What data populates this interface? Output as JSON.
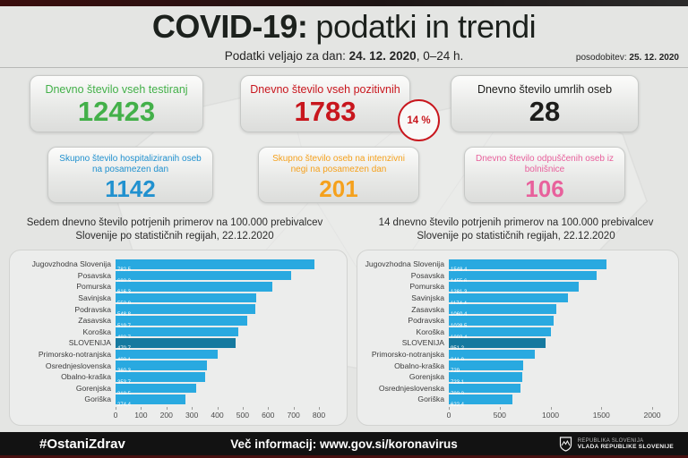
{
  "header": {
    "title_accent": "COVID-19:",
    "title_rest": "podatki in trendi",
    "subtitle_prefix": "Podatki veljajo za dan: ",
    "subtitle_date": "24. 12. 2020",
    "subtitle_suffix": ", 0–24 h.",
    "update_label": "posodobitev: ",
    "update_date": "25. 12. 2020"
  },
  "stat_cards": [
    {
      "label": "Dnevno število vseh testiranj",
      "value": "12423",
      "color": "#43b049"
    },
    {
      "label": "Dnevno število vseh pozitivnih",
      "value": "1783",
      "color": "#c8161d",
      "badge": "14 %"
    },
    {
      "label": "Dnevno število umrlih oseb",
      "value": "28",
      "color": "#1d1d1b"
    },
    {
      "label": "Skupno število hospitaliziranih oseb na posamezen dan",
      "value": "1142",
      "color": "#2191cf"
    },
    {
      "label": "Skupno število oseb na intenzivni negi na posamezen dan",
      "value": "201",
      "color": "#f5a11d"
    },
    {
      "label": "Dnevno število odpuščenih oseb iz bolnišnice",
      "value": "106",
      "color": "#e8619c"
    }
  ],
  "chart_data": [
    {
      "type": "bar",
      "orientation": "horizontal",
      "title": "Sedem dnevno število potrjenih primerov na 100.000 prebivalcev Slovenije po statističnih regijah, 22.12.2020",
      "categories": [
        "Jugovzhodna Slovenija",
        "Posavska",
        "Pomurska",
        "Savinjska",
        "Podravska",
        "Zasavska",
        "Koroška",
        "SLOVENIJA",
        "Primorsko-notranjska",
        "Osrednjeslovenska",
        "Obalno-kraška",
        "Gorenjska",
        "Goriška"
      ],
      "values": [
        782.5,
        692.3,
        616.3,
        552.8,
        548.8,
        519.7,
        482.7,
        470.7,
        403.1,
        360.3,
        353.7,
        318.5,
        274.4
      ],
      "value_labels": [
        "782,5",
        "692,3",
        "616,3",
        "552,8",
        "548,8",
        "519,7",
        "482,7",
        "470,7",
        "403,1",
        "360,3",
        "353,7",
        "318,5",
        "274,4"
      ],
      "highlight_category": "SLOVENIJA",
      "xlim": [
        0,
        800
      ],
      "xticks": [
        0,
        100,
        200,
        300,
        400,
        500,
        600,
        700,
        800
      ],
      "bar_color": "#29a9e0",
      "highlight_color": "#15799f",
      "grid": false,
      "legend": "none"
    },
    {
      "type": "bar",
      "orientation": "horizontal",
      "title": "14 dnevno število potrjenih primerov na 100.000 prebivalcev Slovenije po statističnih regijah, 22.12.2020",
      "categories": [
        "Jugovzhodna Slovenija",
        "Posavska",
        "Pomurska",
        "Savinjska",
        "Zasavska",
        "Podravska",
        "Koroška",
        "SLOVENIJA",
        "Primorsko-notranjska",
        "Obalno-kraška",
        "Gorenjska",
        "Osrednjeslovenska",
        "Goriška"
      ],
      "values": [
        1548.4,
        1455.6,
        1281.3,
        1174.4,
        1060.4,
        1028.5,
        1003.4,
        951.2,
        841.9,
        729,
        723.1,
        703.3,
        622.4
      ],
      "value_labels": [
        "1548,4",
        "1455,6",
        "1281,3",
        "1174,4",
        "1060,4",
        "1028,5",
        "1003,4",
        "951,2",
        "841,9",
        "729",
        "723,1",
        "703,3",
        "622,4"
      ],
      "highlight_category": "SLOVENIJA",
      "xlim": [
        0,
        2000
      ],
      "xticks": [
        0,
        500,
        1000,
        1500,
        2000
      ],
      "bar_color": "#29a9e0",
      "highlight_color": "#15799f",
      "grid": false,
      "legend": "none"
    }
  ],
  "footer": {
    "hashtag": "#OstaniZdrav",
    "info": "Več informacij: www.gov.si/koronavirus",
    "gov_line1": "REPUBLIKA SLOVENIJA",
    "gov_line2": "VLADA REPUBLIKE SLOVENIJE"
  }
}
